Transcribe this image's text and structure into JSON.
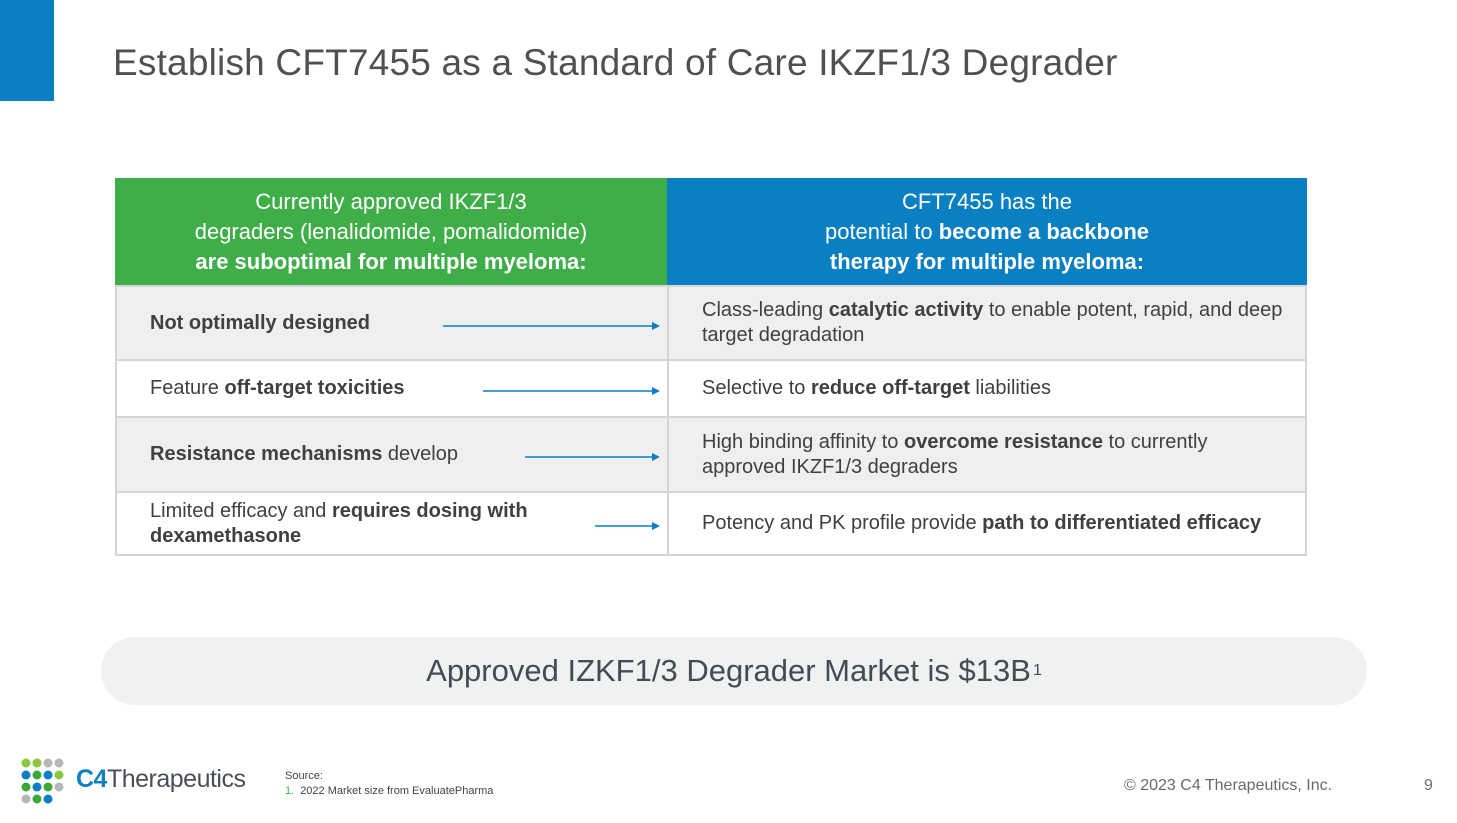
{
  "title": "Establish CFT7455 as a Standard of Care IKZF1/3 Degrader",
  "table": {
    "header": [
      {
        "lines": [
          [
            {
              "text": "Currently approved IKZF1/3",
              "bold": false
            }
          ],
          [
            {
              "text": "degraders (lenalidomide, pomalidomide)",
              "bold": false
            }
          ],
          [
            {
              "text": "are suboptimal for multiple myeloma:",
              "bold": true
            }
          ]
        ]
      },
      {
        "lines": [
          [
            {
              "text": "CFT7455 has the",
              "bold": false
            }
          ],
          [
            {
              "text": "potential to ",
              "bold": false
            },
            {
              "text": "become a backbone",
              "bold": true
            }
          ],
          [
            {
              "text": "therapy for multiple myeloma:",
              "bold": true
            }
          ]
        ]
      }
    ],
    "rows": [
      [
        [
          {
            "text": "Not optimally designed",
            "bold": true
          }
        ],
        [
          {
            "text": "Class-leading ",
            "bold": false
          },
          {
            "text": "catalytic activity",
            "bold": true
          },
          {
            "text": " to enable potent, rapid, and deep target degradation",
            "bold": false
          }
        ]
      ],
      [
        [
          {
            "text": "Feature ",
            "bold": false
          },
          {
            "text": "off-target toxicities",
            "bold": true
          }
        ],
        [
          {
            "text": "Selective to ",
            "bold": false
          },
          {
            "text": "reduce off-target",
            "bold": true
          },
          {
            "text": " liabilities",
            "bold": false
          }
        ]
      ],
      [
        [
          {
            "text": "Resistance mechanisms",
            "bold": true
          },
          {
            "text": " develop",
            "bold": false
          }
        ],
        [
          {
            "text": "High binding affinity to ",
            "bold": false
          },
          {
            "text": "overcome resistance",
            "bold": true
          },
          {
            "text": " to currently approved IKZF1/3 degraders",
            "bold": false
          }
        ]
      ],
      [
        [
          {
            "text": "Limited efficacy and ",
            "bold": false
          },
          {
            "text": "requires dosing with dexamethasone",
            "bold": true
          }
        ],
        [
          {
            "text": "Potency and PK profile provide ",
            "bold": false
          },
          {
            "text": "path to differentiated efficacy",
            "bold": true
          }
        ]
      ]
    ]
  },
  "banner": {
    "text": "Approved IZKF1/3 Degrader Market is $13B",
    "superscript": "1"
  },
  "footer": {
    "logo": {
      "mark": "C4",
      "name": "Therapeutics"
    },
    "source_label": "Source:",
    "sources": [
      {
        "number": "1.",
        "text": "2022 Market size from EvaluatePharma"
      }
    ],
    "copyright": "© 2023 C4 Therapeutics, Inc.",
    "page": "9"
  }
}
